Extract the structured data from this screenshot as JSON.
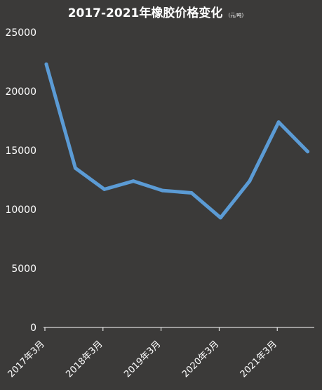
{
  "chart_data": {
    "type": "line",
    "title": "2017-2021年橡胶价格变化",
    "unit": "(元/吨)",
    "xlabel": "",
    "ylabel": "",
    "ylim": [
      0,
      25000
    ],
    "yticks": [
      "0",
      "5000",
      "10000",
      "15000",
      "20000",
      "25000"
    ],
    "xtick_labels": [
      "2017年3月",
      "2018年3月",
      "2019年3月",
      "2020年3月",
      "2021年3月"
    ],
    "x": [
      "2017-03",
      "2017-09",
      "2018-03",
      "2018-09",
      "2019-03",
      "2019-09",
      "2020-03",
      "2020-09",
      "2021-03",
      "2021-09"
    ],
    "series": [
      {
        "values": [
          22300,
          13500,
          11700,
          12400,
          11600,
          11400,
          9300,
          12400,
          17400,
          14900
        ],
        "color": "#5b9bd5"
      }
    ],
    "grid": false,
    "legend": "none"
  },
  "colors": {
    "background": "#3b3a39",
    "axis": "#ffffff",
    "line": "#5b9bd5"
  }
}
